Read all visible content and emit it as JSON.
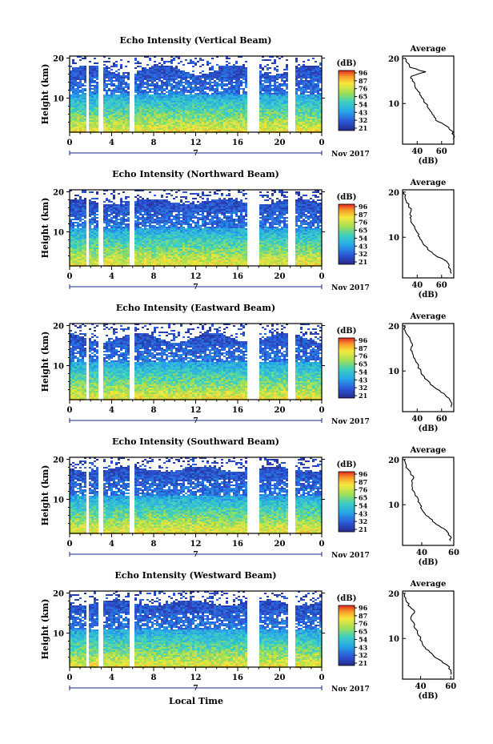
{
  "figure": {
    "xlabel": "Local Time",
    "date_label": "Nov 2017",
    "day_label": "7"
  },
  "chart_data": [
    {
      "type": "heatmap",
      "title": "Echo Intensity (Vertical Beam)",
      "ylabel": "Height (km)",
      "xlabel": "Local Time",
      "x_ticks": [
        "0",
        "4",
        "8",
        "12",
        "16",
        "20",
        "0"
      ],
      "y_ticks": [
        "10",
        "20"
      ],
      "xlim": [
        0,
        24
      ],
      "ylim": [
        1.5,
        20.5
      ],
      "colorbar": {
        "unit": "(dB)",
        "ticks": [
          "96",
          "87",
          "76",
          "65",
          "54",
          "43",
          "32",
          "21"
        ],
        "range": [
          21,
          96
        ]
      },
      "gaps_hours": [
        [
          1.5,
          1.8
        ],
        [
          2.6,
          3.0
        ],
        [
          5.6,
          6.0
        ],
        [
          16.8,
          17.9
        ],
        [
          20.8,
          21.3
        ]
      ],
      "data_top_km": [
        16,
        18.5
      ],
      "profile": {
        "title": "Average",
        "xlabel": "(dB)",
        "x_ticks": [
          "40",
          "60"
        ],
        "xlim": [
          28,
          70
        ],
        "y_ticks": [
          "10",
          "20"
        ],
        "height": [
          2,
          3,
          4,
          5,
          6,
          7,
          8,
          9,
          10,
          11,
          12,
          13,
          14,
          15,
          16,
          17,
          18,
          19,
          20
        ],
        "value": [
          70,
          70,
          68,
          64,
          57,
          54,
          52,
          49,
          47,
          45,
          42,
          40,
          38,
          36,
          35,
          47,
          34,
          32,
          30
        ]
      }
    },
    {
      "type": "heatmap",
      "title": "Echo Intensity (Northward Beam)",
      "ylabel": "Height (km)",
      "xlabel": "Local Time",
      "x_ticks": [
        "0",
        "4",
        "8",
        "12",
        "16",
        "20",
        "0"
      ],
      "y_ticks": [
        "10",
        "20"
      ],
      "xlim": [
        0,
        24
      ],
      "ylim": [
        1.5,
        20.5
      ],
      "colorbar": {
        "unit": "(dB)",
        "ticks": [
          "96",
          "87",
          "76",
          "65",
          "54",
          "43",
          "32",
          "21"
        ],
        "range": [
          21,
          96
        ]
      },
      "gaps_hours": [
        [
          1.5,
          1.8
        ],
        [
          2.6,
          3.0
        ],
        [
          5.6,
          6.0
        ],
        [
          16.8,
          17.9
        ],
        [
          20.8,
          21.3
        ]
      ],
      "data_top_km": [
        17,
        18.5
      ],
      "profile": {
        "title": "Average",
        "xlabel": "(dB)",
        "x_ticks": [
          "40",
          "60"
        ],
        "xlim": [
          28,
          70
        ],
        "y_ticks": [
          "10",
          "20"
        ],
        "height": [
          2,
          3,
          4,
          5,
          6,
          7,
          8,
          9,
          10,
          11,
          12,
          13,
          14,
          15,
          16,
          17,
          18,
          19,
          20
        ],
        "value": [
          68,
          67,
          66,
          62,
          55,
          50,
          47,
          44,
          42,
          40,
          38,
          36,
          35,
          34,
          35,
          33,
          31,
          30,
          29
        ]
      }
    },
    {
      "type": "heatmap",
      "title": "Echo Intensity (Eastward Beam)",
      "ylabel": "Height (km)",
      "xlabel": "Local Time",
      "x_ticks": [
        "0",
        "4",
        "8",
        "12",
        "16",
        "20",
        "0"
      ],
      "y_ticks": [
        "10",
        "20"
      ],
      "xlim": [
        0,
        24
      ],
      "ylim": [
        1.5,
        20.5
      ],
      "colorbar": {
        "unit": "(dB)",
        "ticks": [
          "96",
          "87",
          "76",
          "65",
          "54",
          "43",
          "32",
          "21"
        ],
        "range": [
          21,
          96
        ]
      },
      "gaps_hours": [
        [
          1.5,
          1.8
        ],
        [
          2.6,
          3.0
        ],
        [
          5.6,
          6.0
        ],
        [
          16.8,
          17.9
        ],
        [
          20.8,
          21.3
        ]
      ],
      "data_top_km": [
        16,
        18.5
      ],
      "profile": {
        "title": "Average",
        "xlabel": "(dB)",
        "x_ticks": [
          "40",
          "60"
        ],
        "xlim": [
          28,
          70
        ],
        "y_ticks": [
          "10",
          "20"
        ],
        "height": [
          2,
          3,
          4,
          5,
          6,
          7,
          8,
          9,
          10,
          11,
          12,
          13,
          14,
          15,
          16,
          17,
          18,
          19,
          20
        ],
        "value": [
          68,
          68,
          66,
          62,
          56,
          51,
          48,
          45,
          43,
          41,
          39,
          37,
          36,
          35,
          36,
          34,
          32,
          30,
          29
        ]
      }
    },
    {
      "type": "heatmap",
      "title": "Echo Intensity (Southward Beam)",
      "ylabel": "Height (km)",
      "xlabel": "Local Time",
      "x_ticks": [
        "0",
        "4",
        "8",
        "12",
        "16",
        "20",
        "0"
      ],
      "y_ticks": [
        "10",
        "20"
      ],
      "xlim": [
        0,
        24
      ],
      "ylim": [
        1.5,
        20.5
      ],
      "colorbar": {
        "unit": "(dB)",
        "ticks": [
          "96",
          "87",
          "76",
          "65",
          "54",
          "43",
          "32",
          "21"
        ],
        "range": [
          21,
          96
        ]
      },
      "gaps_hours": [
        [
          1.5,
          1.8
        ],
        [
          2.6,
          3.0
        ],
        [
          5.6,
          6.0
        ],
        [
          16.8,
          17.9
        ],
        [
          20.8,
          21.3
        ]
      ],
      "data_top_km": [
        17,
        18.5
      ],
      "profile": {
        "title": "Average",
        "xlabel": "(dB)",
        "x_ticks": [
          "40",
          "60"
        ],
        "xlim": [
          28,
          60
        ],
        "y_ticks": [
          "10",
          "20"
        ],
        "height": [
          2,
          3,
          4,
          5,
          6,
          7,
          8,
          9,
          10,
          11,
          12,
          13,
          14,
          15,
          16,
          17,
          18,
          19,
          20
        ],
        "value": [
          58,
          58,
          56,
          52,
          48,
          45,
          42,
          40,
          39,
          38,
          36,
          35,
          34,
          34,
          35,
          33,
          31,
          30,
          29
        ]
      }
    },
    {
      "type": "heatmap",
      "title": "Echo Intensity (Westward Beam)",
      "ylabel": "Height (km)",
      "xlabel": "Local Time",
      "x_ticks": [
        "0",
        "4",
        "8",
        "12",
        "16",
        "20",
        "0"
      ],
      "y_ticks": [
        "10",
        "20"
      ],
      "xlim": [
        0,
        24
      ],
      "ylim": [
        1.5,
        20.5
      ],
      "colorbar": {
        "unit": "(dB)",
        "ticks": [
          "96",
          "87",
          "76",
          "65",
          "54",
          "43",
          "32",
          "21"
        ],
        "range": [
          21,
          96
        ]
      },
      "gaps_hours": [
        [
          1.5,
          1.8
        ],
        [
          2.6,
          3.0
        ],
        [
          5.6,
          6.0
        ],
        [
          16.8,
          17.9
        ],
        [
          20.8,
          21.3
        ]
      ],
      "data_top_km": [
        17,
        18.5
      ],
      "profile": {
        "title": "Average",
        "xlabel": "(dB)",
        "x_ticks": [
          "40",
          "60"
        ],
        "xlim": [
          28,
          62
        ],
        "y_ticks": [
          "10",
          "20"
        ],
        "height": [
          2,
          3,
          4,
          5,
          6,
          7,
          8,
          9,
          10,
          11,
          12,
          13,
          14,
          15,
          16,
          17,
          18,
          19,
          20
        ],
        "value": [
          60,
          60,
          58,
          54,
          49,
          46,
          43,
          41,
          40,
          38,
          37,
          36,
          34,
          34,
          36,
          33,
          31,
          30,
          29
        ]
      }
    }
  ]
}
